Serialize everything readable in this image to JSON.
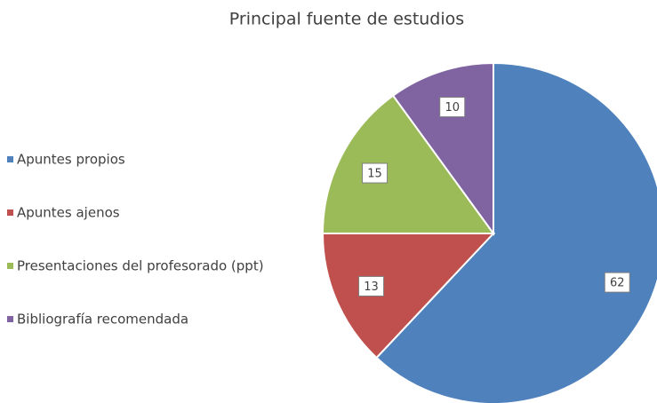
{
  "chart_data": {
    "type": "pie",
    "title": "Principal fuente de estudios",
    "categories": [
      "Apuntes propios",
      "Apuntes ajenos",
      "Presentaciones del profesorado (ppt)",
      "Bibliografía recomendada"
    ],
    "values": [
      62,
      13,
      15,
      10
    ],
    "colors": [
      "#4f81bd",
      "#c0504d",
      "#9bbb59",
      "#8064a2"
    ],
    "legend": "left"
  }
}
